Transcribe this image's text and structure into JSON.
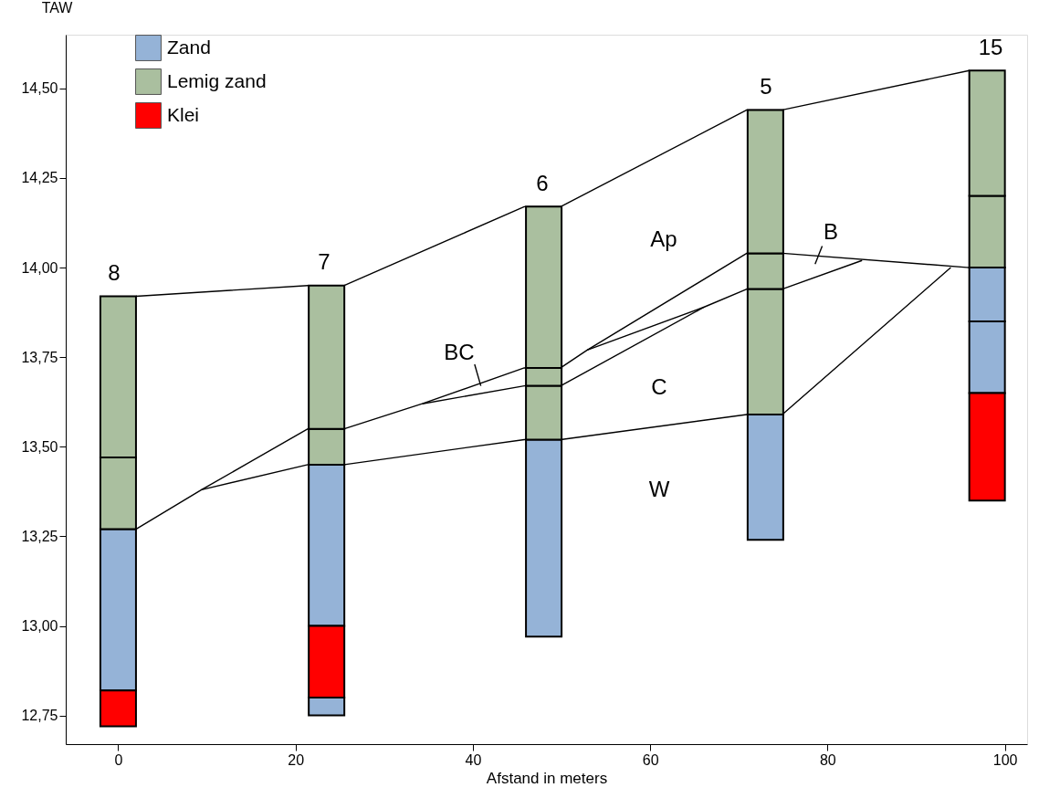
{
  "chart_data": {
    "type": "bar",
    "xlabel": "Afstand in meters",
    "ylabel": "TAW",
    "xlim": [
      -5.4,
      102
    ],
    "xticks": [
      0,
      20,
      40,
      60,
      80,
      100
    ],
    "ylim": [
      12.67,
      14.65
    ],
    "yticks": [
      {
        "value": 12.75,
        "label": "12,75"
      },
      {
        "value": 13.0,
        "label": "13,00"
      },
      {
        "value": 13.25,
        "label": "13,25"
      },
      {
        "value": 13.5,
        "label": "13,50"
      },
      {
        "value": 13.75,
        "label": "13,75"
      },
      {
        "value": 14.0,
        "label": "14,00"
      },
      {
        "value": 14.25,
        "label": "14,25"
      },
      {
        "value": 14.5,
        "label": "14,50"
      }
    ],
    "grid": false,
    "legend": "top left",
    "marker": "none",
    "series": [
      {
        "type": "line",
        "color": "#000000",
        "x": [
          2,
          21.4,
          25.5,
          45.8,
          49.9,
          70.9,
          74.9,
          96
        ],
        "values": [
          13.92,
          13.95,
          13.95,
          14.17,
          14.17,
          14.44,
          14.44,
          14.55
        ]
      },
      {
        "type": "line",
        "color": "#000000",
        "x": [
          2,
          9.4,
          21.4,
          25.5,
          34.3,
          45.8,
          49.9,
          52.9,
          70.9,
          74.9,
          96
        ],
        "values": [
          13.27,
          13.38,
          13.55,
          13.55,
          13.62,
          13.72,
          13.72,
          13.77,
          14.04,
          14.04,
          14.0
        ]
      },
      {
        "type": "line",
        "color": "#000000",
        "x": [
          9.4,
          21.4,
          25.5,
          45.8,
          49.9,
          70.9,
          74.9,
          93.9
        ],
        "values": [
          13.38,
          13.45,
          13.45,
          13.52,
          13.52,
          13.59,
          13.59,
          14.0
        ]
      },
      {
        "type": "line",
        "color": "#000000",
        "x": [
          34.3,
          45.8,
          49.9,
          66.1,
          70.9,
          74.9,
          83.9
        ],
        "values": [
          13.62,
          13.67,
          13.67,
          13.89,
          13.94,
          13.94,
          14.02
        ]
      },
      {
        "type": "line",
        "color": "#000000",
        "x": [
          52.9,
          66.1
        ],
        "values": [
          13.77,
          13.89
        ]
      },
      {
        "type": "line",
        "color": "#000000",
        "x": [
          40.2,
          40.9
        ],
        "values": [
          13.73,
          13.67
        ]
      },
      {
        "type": "line",
        "color": "#000000",
        "x": [
          79.4,
          78.6
        ],
        "values": [
          14.06,
          14.01
        ]
      },
      {
        "name": "Zand",
        "color": "#95b3d7",
        "x": [
          0,
          23.5,
          48,
          73,
          98
        ],
        "base": [
          12.82,
          12.75,
          12.97,
          13.24,
          13.65
        ],
        "values": [
          0.45,
          0.05,
          0.55,
          0.35,
          0.2
        ]
      },
      {
        "color": "#95b3d7",
        "x": [
          23.5,
          98
        ],
        "base": [
          13.0,
          13.85
        ],
        "values": [
          0.45,
          0.15
        ]
      },
      {
        "name": "Lemig zand",
        "color": "#aabf9f",
        "x": [
          0,
          23.5,
          48,
          73,
          98
        ],
        "base": [
          13.27,
          13.45,
          13.52,
          13.59,
          14.0
        ],
        "values": [
          0.2,
          0.1,
          0.15,
          0.35,
          0.2
        ]
      },
      {
        "color": "#aabf9f",
        "x": [
          0,
          23.5,
          48,
          73,
          98
        ],
        "base": [
          13.47,
          13.55,
          13.67,
          13.94,
          14.2
        ],
        "values": [
          0.45,
          0.4,
          0.05,
          0.1,
          0.35
        ]
      },
      {
        "color": "#aabf9f",
        "x": [
          48,
          73
        ],
        "base": [
          13.72,
          14.04
        ],
        "values": [
          0.45,
          0.4
        ]
      },
      {
        "name": "Klei",
        "color": "#ff0000",
        "x": [
          0,
          23.5,
          98
        ],
        "base": [
          12.72,
          12.8,
          13.35
        ],
        "values": [
          0.1,
          0.2,
          0.3
        ]
      }
    ],
    "annotations": [
      "8",
      "7",
      "6",
      "5",
      "15",
      "Ap",
      "B",
      "BC",
      "C",
      "W"
    ]
  }
}
